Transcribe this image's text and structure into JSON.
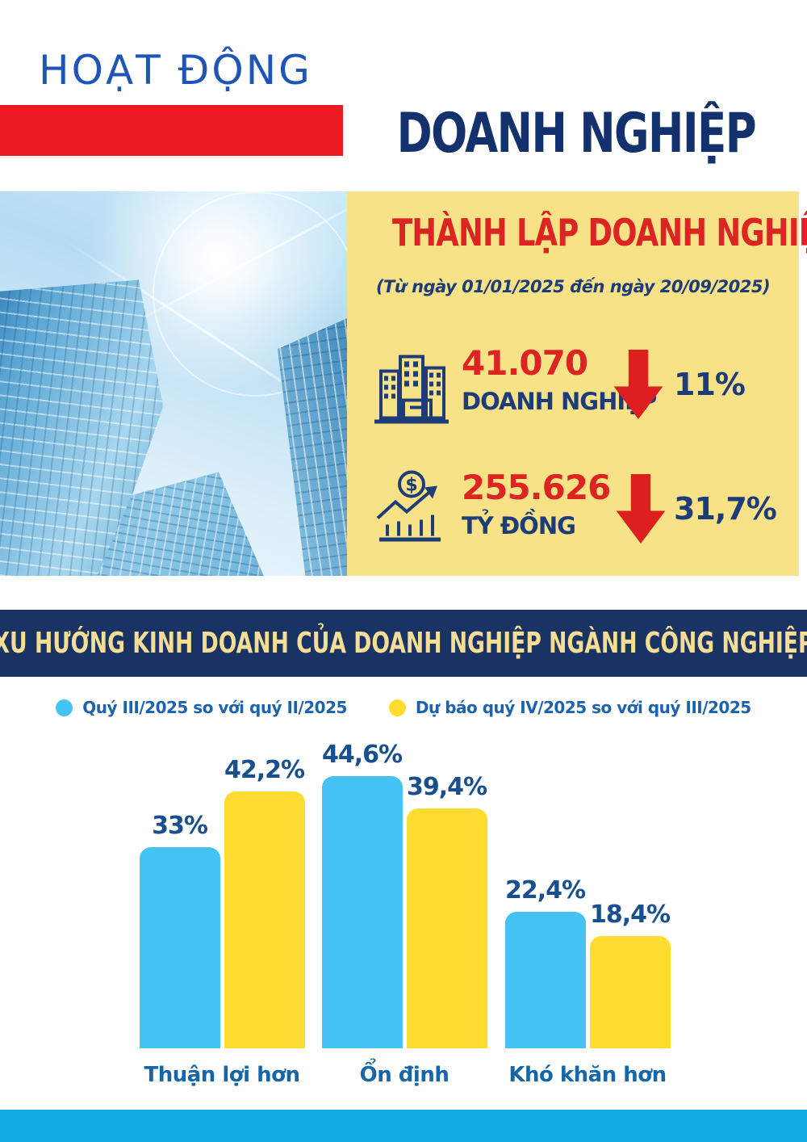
{
  "header": {
    "kicker": "HOẠT ĐỘNG",
    "title": "DOANH NGHIỆP"
  },
  "hero": {
    "panel_title": "THÀNH LẬP DOANH NGHIỆP",
    "panel_subtitle": "(Từ ngày 01/01/2025 đến ngày 20/09/2025)",
    "stats": [
      {
        "icon": "buildings-icon",
        "value": "41.070",
        "unit": "DOANH NGHIỆP",
        "change": "11%",
        "change_direction": "down",
        "change_icon": "arrow-down-icon"
      },
      {
        "icon": "money-growth-icon",
        "value": "255.626",
        "unit": "TỶ ĐỒNG",
        "change": "31,7%",
        "change_direction": "down",
        "change_icon": "arrow-down-icon"
      }
    ]
  },
  "section": {
    "banner": "XU HƯỚNG KINH DOANH CỦA DOANH NGHIỆP NGÀNH CÔNG NGHIỆP"
  },
  "chart_data": {
    "type": "bar",
    "title": "XU HƯỚNG KINH DOANH CỦA DOANH NGHIỆP NGÀNH CÔNG NGHIỆP",
    "categories": [
      "Thuận lợi hơn",
      "Ổn định",
      "Khó khăn hơn"
    ],
    "series": [
      {
        "name": "Quý III/2025 so với quý II/2025",
        "color": "#45C3F5",
        "values": [
          33,
          44.6,
          22.4
        ],
        "labels": [
          "33%",
          "44,6%",
          "22,4%"
        ]
      },
      {
        "name": "Dự báo quý IV/2025 so với quý III/2025",
        "color": "#FFDC2F",
        "values": [
          42.2,
          39.4,
          18.4
        ],
        "labels": [
          "42,2%",
          "39,4%",
          "18,4%"
        ]
      }
    ],
    "unit": "%",
    "ylim": [
      0,
      50
    ],
    "grid": false,
    "legend_position": "top",
    "value_labels": true
  },
  "colors": {
    "kicker_blue": "#1E55B7",
    "title_navy": "#12316D",
    "header_red": "#EC1B23",
    "panel_yellow": "#F8E288",
    "stat_red": "#DC2423",
    "stat_navy": "#1D3C78",
    "arrow_red": "#DD1F1F",
    "banner_navy": "#1A3365",
    "banner_text": "#F5DD95",
    "bar_blue": "#45C3F5",
    "bar_yellow": "#FFDC2F",
    "footer_cyan": "#12ACE3"
  }
}
